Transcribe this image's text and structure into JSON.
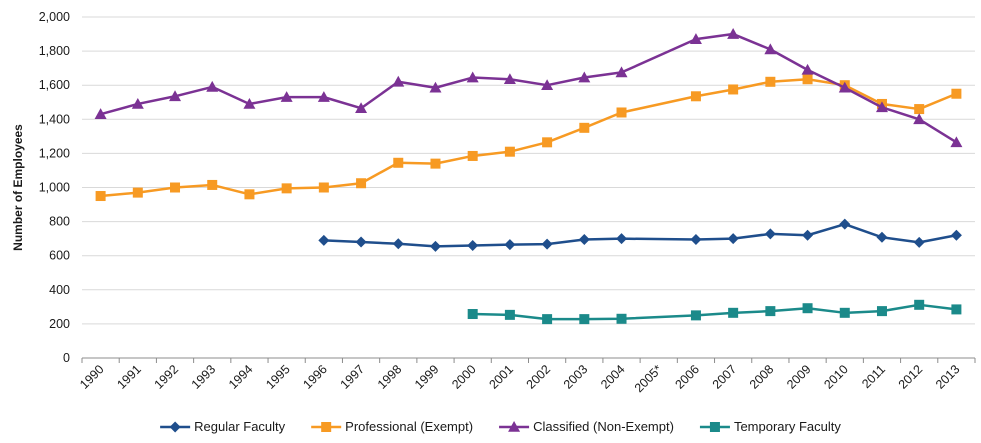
{
  "chart_data": {
    "type": "line",
    "ylabel": "Number of Employees",
    "ylim": [
      0,
      2000
    ],
    "yticks": [
      0,
      200,
      400,
      600,
      800,
      1000,
      1200,
      1400,
      1600,
      1800,
      2000
    ],
    "ytick_labels": [
      "0",
      "200",
      "400",
      "600",
      "800",
      "1,000",
      "1,200",
      "1,400",
      "1,600",
      "1,800",
      "2,000"
    ],
    "grid": "horizontal",
    "legend_position": "bottom",
    "categories": [
      "1990",
      "1991",
      "1992",
      "1993",
      "1994",
      "1995",
      "1996",
      "1997",
      "1998",
      "1999",
      "2000",
      "2001",
      "2002",
      "2003",
      "2004",
      "2005*",
      "2006",
      "2007",
      "2008",
      "2009",
      "2010",
      "2011",
      "2012",
      "2013"
    ],
    "series": [
      {
        "name": "Regular Faculty",
        "color": "#1f4e8c",
        "marker": "diamond",
        "values": [
          null,
          null,
          null,
          null,
          null,
          null,
          690,
          680,
          670,
          655,
          660,
          665,
          668,
          695,
          700,
          null,
          695,
          700,
          728,
          720,
          785,
          708,
          678,
          720
        ]
      },
      {
        "name": "Professional (Exempt)",
        "color": "#f79a23",
        "marker": "square",
        "values": [
          950,
          970,
          1000,
          1015,
          960,
          995,
          1000,
          1025,
          1145,
          1140,
          1185,
          1210,
          1265,
          1350,
          1440,
          null,
          1535,
          1575,
          1620,
          1635,
          1600,
          1490,
          1460,
          1550
        ]
      },
      {
        "name": "Classified (Non-Exempt)",
        "color": "#7b3294",
        "marker": "triangle",
        "values": [
          1430,
          1490,
          1535,
          1590,
          1490,
          1530,
          1530,
          1465,
          1620,
          1585,
          1645,
          1635,
          1600,
          1645,
          1675,
          null,
          1870,
          1900,
          1810,
          1690,
          1585,
          1470,
          1400,
          1265
        ]
      },
      {
        "name": "Temporary Faculty",
        "color": "#1b8a8a",
        "marker": "square",
        "values": [
          null,
          null,
          null,
          null,
          null,
          null,
          null,
          null,
          null,
          null,
          258,
          253,
          228,
          228,
          230,
          null,
          250,
          265,
          275,
          292,
          265,
          275,
          312,
          285
        ]
      }
    ]
  }
}
